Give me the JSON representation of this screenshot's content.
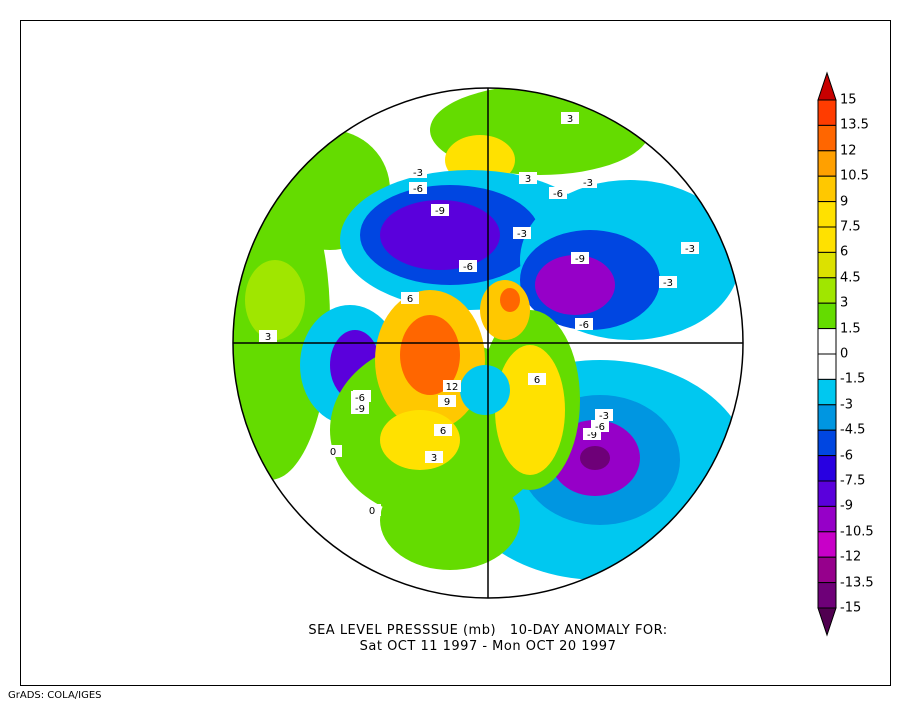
{
  "title_line1": "SEA LEVEL PRESSSUE (mb)   10-DAY ANOMALY FOR:",
  "title_line2": "Sat OCT 11 1997 - Mon OCT 20 1997",
  "footer": "GrADS: COLA/IGES",
  "colorbar": {
    "labels": [
      "15",
      "13.5",
      "12",
      "10.5",
      "9",
      "7.5",
      "6",
      "4.5",
      "3",
      "1.5",
      "0",
      "-1.5",
      "-3",
      "-4.5",
      "-6",
      "-7.5",
      "-9",
      "-10.5",
      "-12",
      "-13.5",
      "-15"
    ],
    "colors": [
      "#ff3c00",
      "#ff6600",
      "#ffa000",
      "#ffc800",
      "#ffe100",
      "#ffe100",
      "#dce100",
      "#a0e600",
      "#64dc00",
      "#ffffff",
      "#ffffff",
      "#00c8f0",
      "#0096e1",
      "#0046e1",
      "#2800e1",
      "#5a00dc",
      "#9600c8",
      "#c800c8",
      "#96008c",
      "#6e0078"
    ],
    "top_arrow_color": "#c80000",
    "bottom_arrow_color": "#500050"
  },
  "contour_labels": [
    "-3",
    "-6",
    "-9",
    "-6",
    "-3",
    "-9",
    "-6",
    "-3",
    "-6",
    "-3",
    "-6",
    "-9",
    "3",
    "6",
    "12",
    "9",
    "6",
    "3",
    "0",
    "0",
    "-3",
    "-6",
    "-9",
    "6",
    "3",
    "-3",
    "-6",
    "3"
  ]
}
